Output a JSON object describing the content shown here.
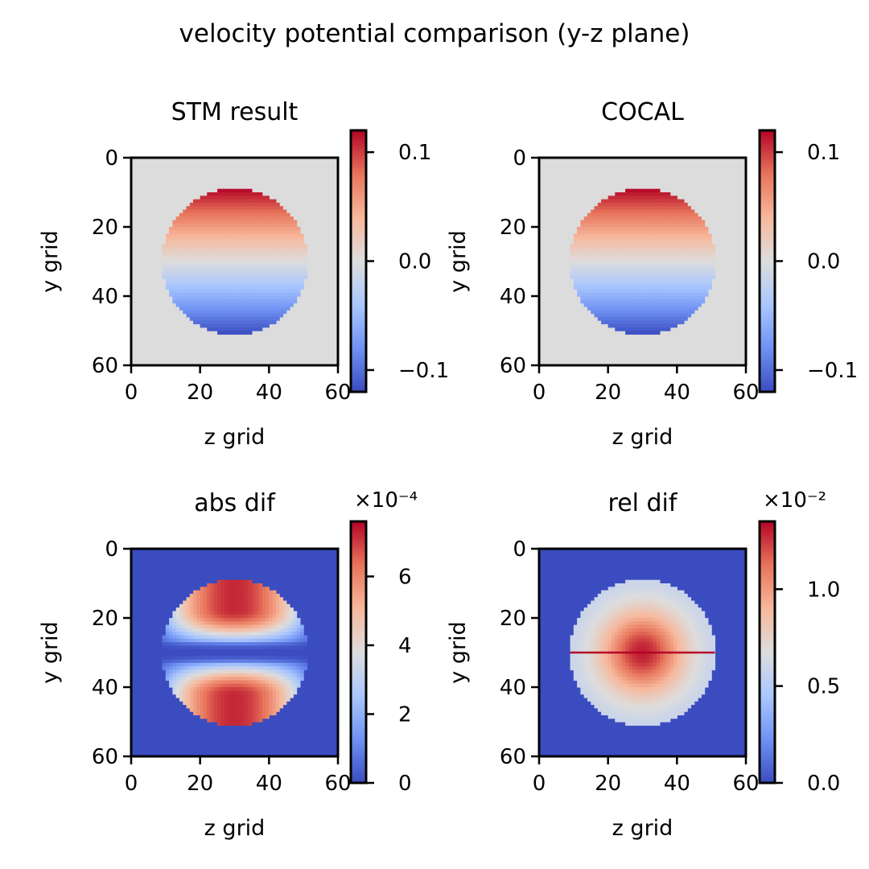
{
  "figure": {
    "suptitle": "velocity potential comparison (y-z plane)"
  },
  "colormap": {
    "name": "coolwarm",
    "stops": [
      "#3b4cc0",
      "#6f92f3",
      "#aac7fd",
      "#dddddd",
      "#f7b89c",
      "#e7745b",
      "#b40426"
    ],
    "background_gray": "#dcdcdc",
    "line_red": "#b40426"
  },
  "chart_data": [
    {
      "type": "heatmap",
      "title": "STM result",
      "xlabel": "z grid",
      "ylabel": "y grid",
      "xticks": [
        "0",
        "20",
        "40",
        "60"
      ],
      "yticks": [
        "0",
        "20",
        "40",
        "60"
      ],
      "xlim": [
        0,
        60
      ],
      "ylim": [
        60,
        0
      ],
      "pattern": "vertical-gradient",
      "disk_center": [
        30,
        30
      ],
      "disk_radius": 21,
      "outside_value": 0.0,
      "clim": [
        -0.12,
        0.12
      ],
      "colorbar": {
        "ticks": [
          0.1,
          0.0,
          -0.1
        ],
        "ticklabels": [
          "0.1",
          "0.0",
          "−0.1"
        ],
        "offset": ""
      }
    },
    {
      "type": "heatmap",
      "title": "COCAL",
      "xlabel": "z grid",
      "ylabel": "y grid",
      "xticks": [
        "0",
        "20",
        "40",
        "60"
      ],
      "yticks": [
        "0",
        "20",
        "40",
        "60"
      ],
      "xlim": [
        0,
        60
      ],
      "ylim": [
        60,
        0
      ],
      "pattern": "vertical-gradient",
      "disk_center": [
        30,
        30
      ],
      "disk_radius": 21,
      "outside_value": 0.0,
      "clim": [
        -0.12,
        0.12
      ],
      "colorbar": {
        "ticks": [
          0.1,
          0.0,
          -0.1
        ],
        "ticklabels": [
          "0.1",
          "0.0",
          "−0.1"
        ],
        "offset": ""
      }
    },
    {
      "type": "heatmap",
      "title": "abs dif",
      "xlabel": "z grid",
      "ylabel": "y grid",
      "xticks": [
        "0",
        "20",
        "40",
        "60"
      ],
      "yticks": [
        "0",
        "20",
        "40",
        "60"
      ],
      "xlim": [
        0,
        60
      ],
      "ylim": [
        60,
        0
      ],
      "pattern": "abs-diff",
      "disk_center": [
        30,
        30
      ],
      "disk_radius": 21,
      "outside_value": 0.0,
      "clim": [
        0,
        7.6
      ],
      "colorbar": {
        "ticks": [
          0,
          2,
          4,
          6
        ],
        "ticklabels": [
          "0",
          "2",
          "4",
          "6"
        ],
        "offset": "×10⁻⁴"
      }
    },
    {
      "type": "heatmap",
      "title": "rel dif",
      "xlabel": "z grid",
      "ylabel": "y grid",
      "xticks": [
        "0",
        "20",
        "40",
        "60"
      ],
      "yticks": [
        "0",
        "20",
        "40",
        "60"
      ],
      "xlim": [
        0,
        60
      ],
      "ylim": [
        60,
        0
      ],
      "pattern": "rel-diff",
      "disk_center": [
        30,
        30
      ],
      "disk_radius": 21,
      "outside_value": 0.0,
      "clim": [
        0,
        1.35
      ],
      "colorbar": {
        "ticks": [
          0.0,
          0.5,
          1.0
        ],
        "ticklabels": [
          "0.0",
          "0.5",
          "1.0"
        ],
        "offset": "×10⁻²"
      }
    }
  ]
}
